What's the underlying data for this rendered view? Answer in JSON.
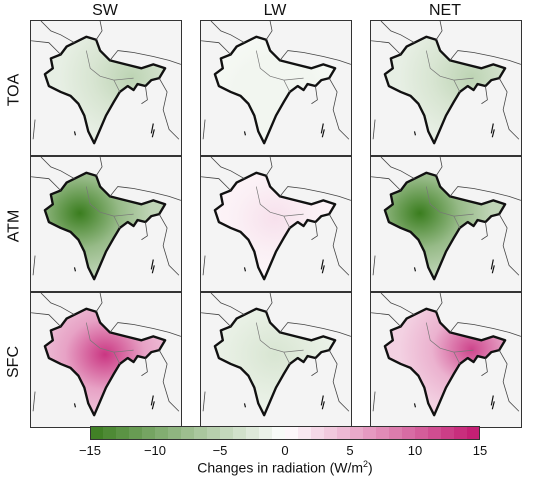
{
  "columns": [
    "SW",
    "LW",
    "NET"
  ],
  "rows": [
    "TOA",
    "ATM",
    "SFC"
  ],
  "panels": [
    {
      "row": "TOA",
      "col": "SW",
      "mean_change": -3,
      "spot": -5,
      "spot_pos": "northeast"
    },
    {
      "row": "TOA",
      "col": "LW",
      "mean_change": -1,
      "spot": -1,
      "spot_pos": "center"
    },
    {
      "row": "TOA",
      "col": "NET",
      "mean_change": -3,
      "spot": -5,
      "spot_pos": "northeast"
    },
    {
      "row": "ATM",
      "col": "SW",
      "mean_change": -8,
      "spot": -15,
      "spot_pos": "northwest"
    },
    {
      "row": "ATM",
      "col": "LW",
      "mean_change": 1,
      "spot": 2,
      "spot_pos": "north"
    },
    {
      "row": "ATM",
      "col": "NET",
      "mean_change": -8,
      "spot": -15,
      "spot_pos": "northwest"
    },
    {
      "row": "SFC",
      "col": "SW",
      "mean_change": 6,
      "spot": 13,
      "spot_pos": "north"
    },
    {
      "row": "SFC",
      "col": "LW",
      "mean_change": -2,
      "spot": -3,
      "spot_pos": "north"
    },
    {
      "row": "SFC",
      "col": "NET",
      "mean_change": 5,
      "spot": 12,
      "spot_pos": "northeast"
    }
  ],
  "colorbar": {
    "min": -15,
    "max": 15,
    "ticks": [
      "−15",
      "−10",
      "−5",
      "0",
      "5",
      "10",
      "15"
    ],
    "tick_values": [
      -15,
      -10,
      -5,
      0,
      5,
      10,
      15
    ],
    "label": "Changes in radiation (W/m",
    "label_sup": "2",
    "label_end": ")",
    "negative_color": "#3a7d1e",
    "positive_color": "#c2176f"
  }
}
